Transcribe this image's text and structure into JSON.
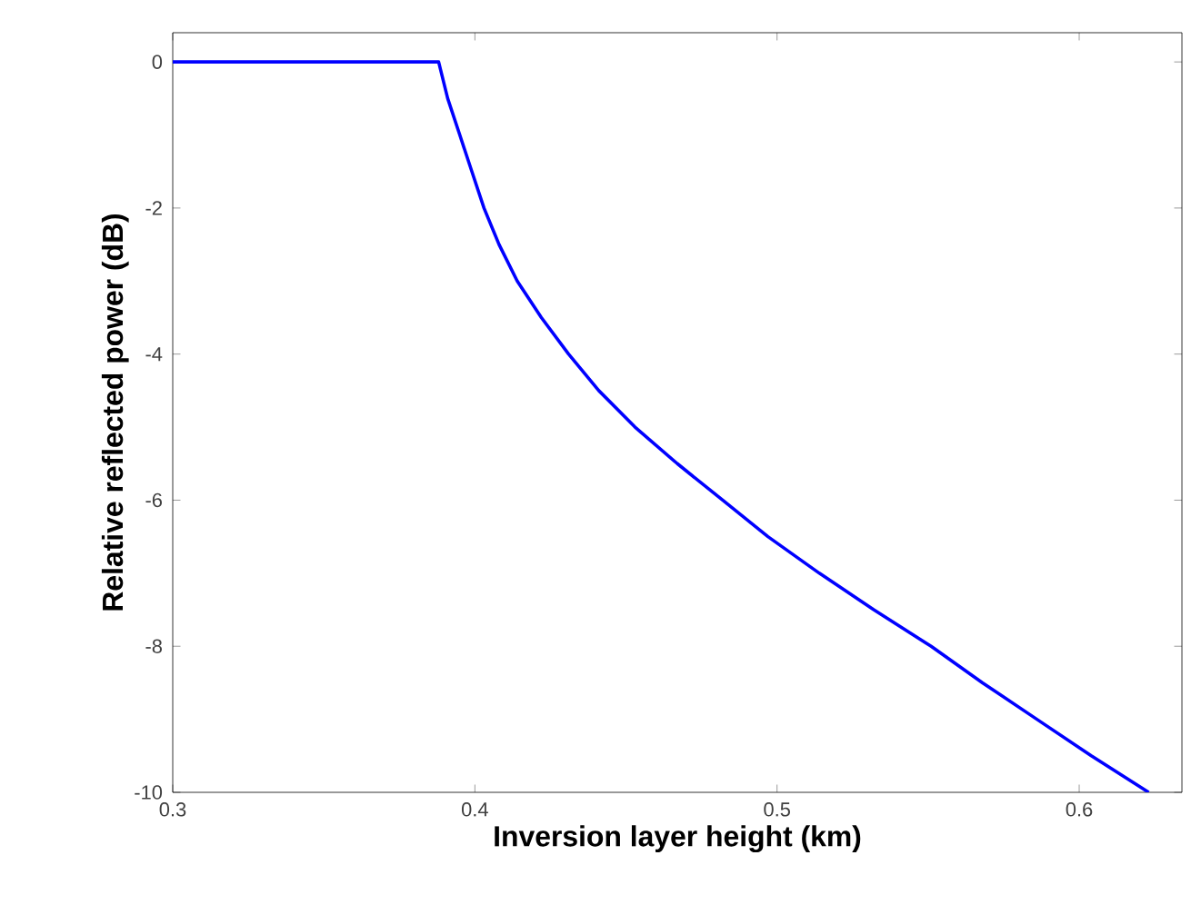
{
  "chart_data": {
    "type": "line",
    "xlabel": "Inversion layer height (km)",
    "ylabel": "Relative reflected power (dB)",
    "xlim": [
      0.3,
      0.634
    ],
    "ylim": [
      -10,
      0.4
    ],
    "xticks": [
      0.3,
      0.4,
      0.5,
      0.6
    ],
    "yticks": [
      0,
      -2,
      -4,
      -6,
      -8,
      -10
    ],
    "grid": false,
    "legend": false,
    "marker": "none",
    "line_style": "solid",
    "series": [
      {
        "color": "#0000ff",
        "x": [
          0.3,
          0.388,
          0.391,
          0.395,
          0.399,
          0.403,
          0.408,
          0.414,
          0.422,
          0.431,
          0.441,
          0.453,
          0.467,
          0.482,
          0.497,
          0.514,
          0.532,
          0.551,
          0.568,
          0.586,
          0.604,
          0.623
        ],
        "values": [
          0,
          0,
          -0.5,
          -1,
          -1.5,
          -2,
          -2.5,
          -3,
          -3.5,
          -4,
          -4.5,
          -5,
          -5.5,
          -6,
          -6.5,
          -7,
          -7.5,
          -8,
          -8.5,
          -9,
          -9.5,
          -10
        ]
      }
    ]
  }
}
